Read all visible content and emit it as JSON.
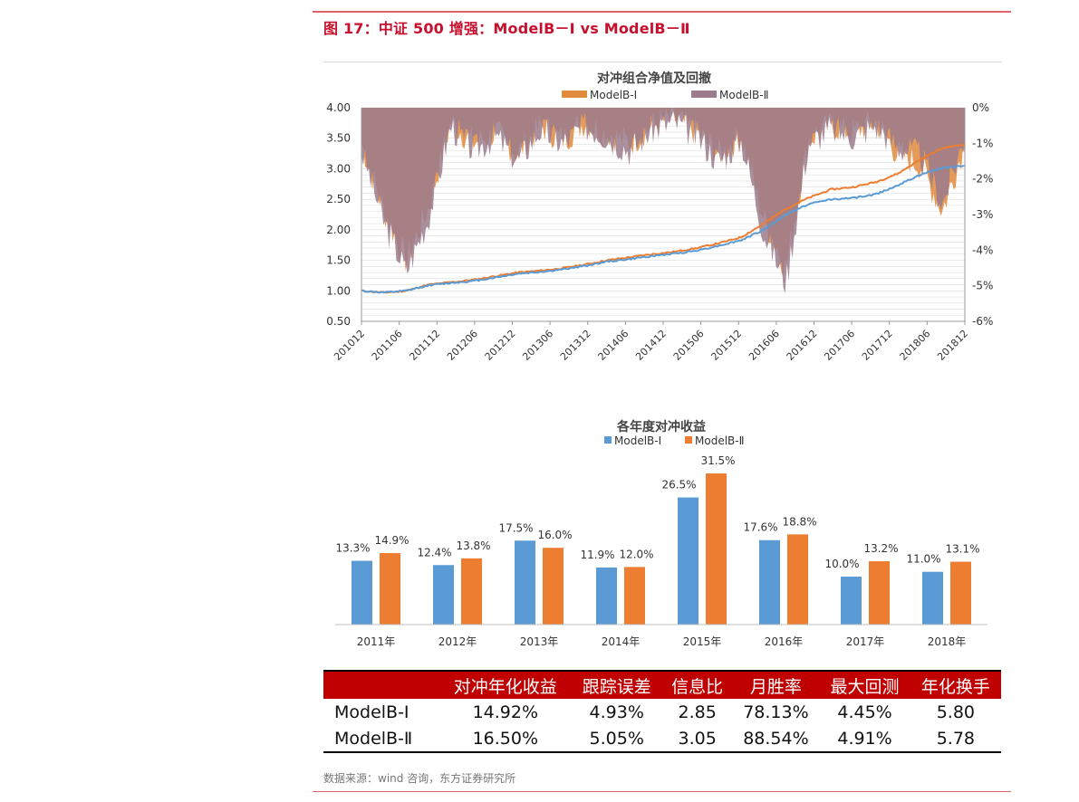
{
  "figure": {
    "title": "图 17：中证 500 增强：ModelB－Ⅰ vs ModelB－Ⅱ",
    "source": "数据来源：wind 咨询，东方证券研究所",
    "accent_color": "#c8102e"
  },
  "chart_data": [
    {
      "type": "line",
      "title": "对冲组合净值及回撤",
      "legend": [
        "ModelB-Ⅰ",
        "ModelB-Ⅱ"
      ],
      "legend_position": "top",
      "colors": {
        "ModelB-Ⅰ": "#ed7d31",
        "ModelB-Ⅱ": "#5b9bd5",
        "drawdown_I": "#e08a3c",
        "drawdown_II": "#9b7b8c"
      },
      "x_ticks": [
        "201012",
        "201106",
        "201112",
        "201206",
        "201212",
        "201306",
        "201312",
        "201406",
        "201412",
        "201506",
        "201512",
        "201606",
        "201612",
        "201706",
        "201712",
        "201806",
        "201812"
      ],
      "y_left": {
        "ticks": [
          "4.00",
          "3.50",
          "3.00",
          "2.50",
          "2.00",
          "1.50",
          "1.00",
          "0.50"
        ],
        "range": [
          0.5,
          4.0
        ]
      },
      "y_right": {
        "ticks": [
          "0%",
          "-1%",
          "-2%",
          "-3%",
          "-4%",
          "-5%",
          "-6%"
        ],
        "range": [
          -6,
          0
        ]
      },
      "series": [
        {
          "name": "ModelB-Ⅰ",
          "axis": "left",
          "values": [
            1.0,
            0.97,
            1.0,
            1.1,
            1.14,
            1.18,
            1.24,
            1.3,
            1.33,
            1.37,
            1.43,
            1.5,
            1.55,
            1.6,
            1.64,
            1.7,
            1.78,
            1.88,
            2.1,
            2.35,
            2.52,
            2.66,
            2.7,
            2.78,
            2.92,
            3.15,
            3.34,
            3.4
          ]
        },
        {
          "name": "ModelB-Ⅱ",
          "axis": "left",
          "values": [
            1.0,
            0.97,
            1.0,
            1.09,
            1.13,
            1.16,
            1.22,
            1.28,
            1.31,
            1.35,
            1.41,
            1.48,
            1.52,
            1.57,
            1.61,
            1.66,
            1.74,
            1.83,
            2.0,
            2.25,
            2.42,
            2.5,
            2.52,
            2.58,
            2.73,
            2.9,
            3.02,
            3.05
          ]
        },
        {
          "name": "Drawdown ModelB-Ⅱ",
          "axis": "right",
          "values": [
            -1.2,
            -3.2,
            -4.6,
            -3.1,
            -0.5,
            -1.2,
            -0.8,
            -1.5,
            -0.6,
            -1.0,
            -0.5,
            -0.8,
            -1.2,
            -0.6,
            -0.4,
            -0.8,
            -1.5,
            -0.9,
            -3.5,
            -4.9,
            -1.0,
            -0.6,
            -0.8,
            -0.5,
            -1.1,
            -1.3,
            -2.7,
            -0.8
          ]
        },
        {
          "name": "Drawdown ModelB-Ⅰ",
          "axis": "right",
          "values": [
            -1.0,
            -2.9,
            -4.3,
            -2.8,
            -0.4,
            -1.0,
            -0.7,
            -1.3,
            -0.5,
            -0.9,
            -0.4,
            -0.7,
            -1.0,
            -0.5,
            -0.3,
            -0.7,
            -1.3,
            -0.8,
            -3.1,
            -4.5,
            -0.9,
            -0.5,
            -0.7,
            -0.4,
            -1.3,
            -1.6,
            -2.9,
            -1.0
          ]
        }
      ]
    },
    {
      "type": "bar",
      "title": "各年度对冲收益",
      "legend_position": "top",
      "categories": [
        "2011年",
        "2012年",
        "2013年",
        "2014年",
        "2015年",
        "2016年",
        "2017年",
        "2018年"
      ],
      "series": [
        {
          "name": "ModelB-Ⅰ",
          "color": "#5b9bd5",
          "values": [
            13.3,
            12.4,
            17.5,
            11.9,
            26.5,
            17.6,
            10.0,
            11.0
          ],
          "labels": [
            "13.3%",
            "12.4%",
            "17.5%",
            "11.9%",
            "26.5%",
            "17.6%",
            "10.0%",
            "11.0%"
          ]
        },
        {
          "name": "ModelB-Ⅱ",
          "color": "#ed7d31",
          "values": [
            14.9,
            13.8,
            16.0,
            12.0,
            31.5,
            18.8,
            13.2,
            13.1
          ],
          "labels": [
            "14.9%",
            "13.8%",
            "16.0%",
            "12.0%",
            "31.5%",
            "18.8%",
            "13.2%",
            "13.1%"
          ]
        }
      ]
    }
  ],
  "table": {
    "header_color": "#c00000",
    "headers": [
      "",
      "对冲年化收益",
      "跟踪误差",
      "信息比",
      "月胜率",
      "最大回测",
      "年化换手"
    ],
    "rows": [
      [
        "ModelB-Ⅰ",
        "14.92%",
        "4.93%",
        "2.85",
        "78.13%",
        "4.45%",
        "5.80"
      ],
      [
        "ModelB-Ⅱ",
        "16.50%",
        "5.05%",
        "3.05",
        "88.54%",
        "4.91%",
        "5.78"
      ]
    ]
  }
}
